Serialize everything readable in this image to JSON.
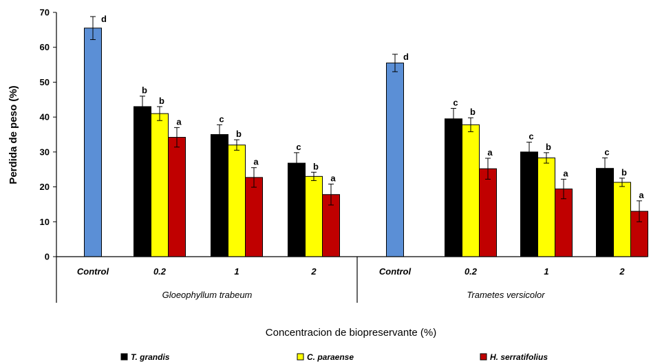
{
  "chart_data": {
    "type": "bar",
    "ylabel": "Perdida de peso (%)",
    "xlabel": "Concentracion de biopreservante (%)",
    "ylim": [
      0,
      70
    ],
    "yticks": [
      0,
      10,
      20,
      30,
      40,
      50,
      60,
      70
    ],
    "legend_position": "bottom",
    "grid": false,
    "groups": [
      {
        "name": "Gloeophyllum trabeum",
        "categories": [
          {
            "label": "Control",
            "bars": [
              {
                "series": "Control",
                "value": 65.5,
                "err": 3.3,
                "sig": "d"
              }
            ]
          },
          {
            "label": "0.2",
            "bars": [
              {
                "series": "T. grandis",
                "value": 43.0,
                "err": 3.0,
                "sig": "b"
              },
              {
                "series": "C. paraense",
                "value": 41.0,
                "err": 2.0,
                "sig": "b"
              },
              {
                "series": "H. serratifolius",
                "value": 34.2,
                "err": 2.8,
                "sig": "a"
              }
            ]
          },
          {
            "label": "1",
            "bars": [
              {
                "series": "T. grandis",
                "value": 35.0,
                "err": 2.8,
                "sig": "c"
              },
              {
                "series": "C. paraense",
                "value": 32.0,
                "err": 1.5,
                "sig": "b"
              },
              {
                "series": "H. serratifolius",
                "value": 22.7,
                "err": 2.8,
                "sig": "a"
              }
            ]
          },
          {
            "label": "2",
            "bars": [
              {
                "series": "T. grandis",
                "value": 26.8,
                "err": 3.0,
                "sig": "c"
              },
              {
                "series": "C. paraense",
                "value": 23.0,
                "err": 1.2,
                "sig": "b"
              },
              {
                "series": "H. serratifolius",
                "value": 17.8,
                "err": 3.0,
                "sig": "a"
              }
            ]
          }
        ]
      },
      {
        "name": "Trametes versicolor",
        "categories": [
          {
            "label": "Control",
            "bars": [
              {
                "series": "Control",
                "value": 55.5,
                "err": 2.5,
                "sig": "d"
              }
            ]
          },
          {
            "label": "0.2",
            "bars": [
              {
                "series": "T. grandis",
                "value": 39.5,
                "err": 3.0,
                "sig": "c"
              },
              {
                "series": "C. paraense",
                "value": 37.8,
                "err": 2.0,
                "sig": "b"
              },
              {
                "series": "H. serratifolius",
                "value": 25.2,
                "err": 3.0,
                "sig": "a"
              }
            ]
          },
          {
            "label": "1",
            "bars": [
              {
                "series": "T. grandis",
                "value": 30.0,
                "err": 2.8,
                "sig": "c"
              },
              {
                "series": "C. paraense",
                "value": 28.3,
                "err": 1.5,
                "sig": "b"
              },
              {
                "series": "H. serratifolius",
                "value": 19.4,
                "err": 2.8,
                "sig": "a"
              }
            ]
          },
          {
            "label": "2",
            "bars": [
              {
                "series": "T. grandis",
                "value": 25.3,
                "err": 3.0,
                "sig": "c"
              },
              {
                "series": "C. paraense",
                "value": 21.3,
                "err": 1.2,
                "sig": "b"
              },
              {
                "series": "H. serratifolius",
                "value": 13.0,
                "err": 3.0,
                "sig": "a"
              }
            ]
          }
        ]
      }
    ],
    "series_colors": {
      "Control": "#5b8fd6",
      "T. grandis": "#000000",
      "C. paraense": "#ffff00",
      "H. serratifolius": "#c00000"
    },
    "legend": [
      {
        "name": "T. grandis",
        "color": "#000000"
      },
      {
        "name": "C. paraense",
        "color": "#ffff00"
      },
      {
        "name": "H. serratifolius",
        "color": "#c00000"
      }
    ]
  }
}
